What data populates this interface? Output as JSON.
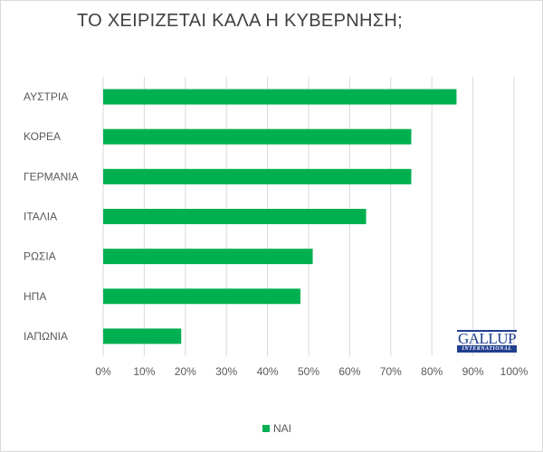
{
  "chart_data": {
    "type": "bar",
    "orientation": "horizontal",
    "title": "ΤΟ ΧΕΙΡΙΖΕΤΑΙ ΚΑΛΑ Η ΚΥΒΕΡΝΗΣΗ;",
    "categories": [
      "ΑΥΣΤΡΙΑ",
      "ΚΟΡΕΑ",
      "ΓΕΡΜΑΝΙΑ",
      "ΙΤΑΛΙΑ",
      "ΡΩΣΙΑ",
      "ΗΠΑ",
      "ΙΑΠΩΝΙΑ"
    ],
    "series": [
      {
        "name": "ΝΑΙ",
        "values": [
          86,
          75,
          75,
          64,
          51,
          48,
          19
        ],
        "color": "#00b050"
      }
    ],
    "xlim": [
      0,
      100
    ],
    "xticks": [
      "0%",
      "10%",
      "20%",
      "30%",
      "40%",
      "50%",
      "60%",
      "70%",
      "80%",
      "90%",
      "100%"
    ],
    "grid": true,
    "legend": "bottom"
  },
  "logo": {
    "line1": "GALLUP",
    "line2": "INTERNATIONAL"
  }
}
